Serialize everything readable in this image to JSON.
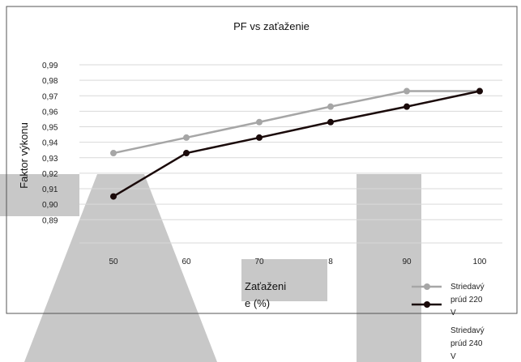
{
  "chart_data": {
    "type": "line",
    "title": "PF vs zaťaženie",
    "ylabel": "Faktor výkonu",
    "xlabel_lines": [
      "Zaťaženi",
      "e (%)"
    ],
    "categories": [
      "50",
      "60",
      "70",
      "8",
      "90",
      "100"
    ],
    "y_tick_labels": [
      "0,99",
      "0,98",
      "0,97",
      "0,96",
      "0,95",
      "0,94",
      "0,93",
      "0,92",
      "0,91",
      "0,90",
      "0,89"
    ],
    "y_tick_values": [
      0.99,
      0.98,
      0.97,
      0.96,
      0.95,
      0.94,
      0.93,
      0.92,
      0.91,
      0.9,
      0.89
    ],
    "ylim": [
      0.875,
      0.99
    ],
    "grid": true,
    "legend_position": "bottom-right",
    "series": [
      {
        "name_lines": [
          "Striedavý",
          "prúd 220",
          "V"
        ],
        "color": "#a6a6a6",
        "values": [
          0.933,
          0.943,
          0.953,
          0.963,
          0.973,
          0.973
        ]
      },
      {
        "name_lines": [
          "Striedavý",
          "prúd 240",
          "V"
        ],
        "color": "#1a0a0a",
        "values": [
          0.905,
          0.933,
          0.943,
          0.953,
          0.963,
          0.973
        ]
      }
    ]
  },
  "colors": {
    "grid": "#d9d9d9",
    "border": "#555555",
    "overlay": "#c8c8c8"
  }
}
